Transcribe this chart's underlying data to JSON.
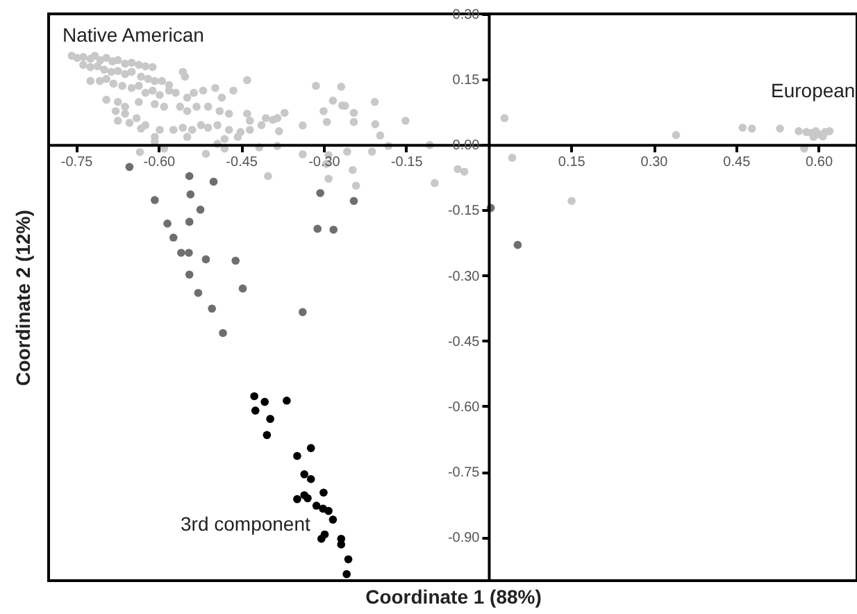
{
  "chart_data": {
    "type": "scatter",
    "xlabel": "Coordinate 1 (88%)",
    "ylabel": "Coordinate 2 (12%)",
    "xlim": [
      -0.8,
      0.67
    ],
    "ylim": [
      -1.0,
      0.3
    ],
    "xticks": [
      -0.75,
      {
        "value": -0.6,
        "label": "-0.60"
      },
      -0.45,
      {
        "value": -0.3,
        "label": "-0.30"
      },
      -0.15,
      0.15,
      {
        "value": 0.3,
        "label": "0.30"
      },
      0.45,
      {
        "value": 0.6,
        "label": "0.60"
      }
    ],
    "yticks": [
      {
        "value": 0.3,
        "label": "0.30"
      },
      0.15,
      {
        "value": 0,
        "label": "0.00"
      },
      -0.15,
      {
        "value": -0.3,
        "label": "-0.30"
      },
      -0.45,
      {
        "value": -0.6,
        "label": "-0.60"
      },
      -0.75,
      {
        "value": -0.9,
        "label": "-0.90"
      }
    ],
    "grid": false,
    "marker": "circle",
    "series": [
      {
        "color": "#c8c8c8",
        "x": [
          -0.758,
          -0.748,
          -0.737,
          -0.724,
          -0.716,
          -0.706,
          -0.695,
          -0.684,
          -0.674,
          -0.661,
          -0.649,
          -0.636,
          -0.624,
          -0.611,
          -0.737,
          -0.724,
          -0.711,
          -0.699,
          -0.686,
          -0.674,
          -0.661,
          -0.649,
          -0.632,
          -0.619,
          -0.607,
          -0.594,
          -0.581,
          -0.556,
          -0.552,
          -0.724,
          -0.707,
          -0.695,
          -0.682,
          -0.666,
          -0.649,
          -0.636,
          -0.624,
          -0.611,
          -0.598,
          -0.581,
          -0.569,
          -0.548,
          -0.536,
          -0.519,
          -0.497,
          -0.485,
          -0.464,
          -0.439,
          -0.695,
          -0.674,
          -0.661,
          -0.636,
          -0.607,
          -0.59,
          -0.561,
          -0.548,
          -0.531,
          -0.51,
          -0.489,
          -0.472,
          -0.439,
          -0.405,
          -0.384,
          -0.678,
          -0.661,
          -0.64,
          -0.624,
          -0.598,
          -0.573,
          -0.556,
          -0.539,
          -0.523,
          -0.51,
          -0.493,
          -0.472,
          -0.451,
          -0.434,
          -0.413,
          -0.674,
          -0.653,
          -0.632,
          -0.607,
          -0.548,
          -0.48,
          -0.456,
          -0.434,
          -0.314,
          -0.268,
          -0.283,
          -0.266,
          -0.261,
          -0.3,
          -0.245,
          -0.207,
          -0.371,
          -0.392,
          -0.381,
          -0.338,
          -0.294,
          -0.245,
          -0.206,
          -0.151,
          -0.197,
          -0.338,
          -0.291,
          -0.257,
          -0.212,
          -0.182,
          -0.107,
          -0.295,
          -0.247,
          -0.291,
          -0.241,
          -0.056,
          -0.044,
          -0.098,
          -0.607,
          -0.634,
          -0.59,
          -0.514,
          -0.493,
          -0.48,
          -0.417,
          -0.401,
          -0.384,
          0.029,
          0.043,
          0.151,
          0.341,
          0.462,
          0.479,
          0.53,
          0.564,
          0.578,
          0.587,
          0.595,
          0.603,
          0.612,
          0.62,
          0.591,
          0.608,
          0.574
        ],
        "values": [
          0.204,
          0.199,
          0.201,
          0.197,
          0.204,
          0.194,
          0.199,
          0.191,
          0.194,
          0.186,
          0.188,
          0.183,
          0.18,
          0.178,
          0.183,
          0.178,
          0.18,
          0.172,
          0.167,
          0.169,
          0.162,
          0.167,
          0.156,
          0.151,
          0.146,
          0.146,
          0.137,
          0.167,
          0.156,
          0.146,
          0.146,
          0.151,
          0.14,
          0.135,
          0.13,
          0.135,
          0.119,
          0.124,
          0.114,
          0.124,
          0.119,
          0.108,
          0.119,
          0.124,
          0.13,
          0.108,
          0.124,
          0.148,
          0.103,
          0.098,
          0.087,
          0.098,
          0.093,
          0.087,
          0.087,
          0.077,
          0.087,
          0.087,
          0.077,
          0.071,
          0.071,
          0.061,
          0.061,
          0.077,
          0.071,
          0.061,
          0.045,
          0.034,
          0.034,
          0.039,
          0.034,
          0.045,
          0.039,
          0.045,
          0.034,
          0.029,
          0.034,
          0.045,
          0.055,
          0.05,
          0.037,
          0.018,
          0.018,
          0.013,
          0.018,
          0.055,
          0.135,
          0.133,
          0.101,
          0.09,
          0.089,
          0.077,
          0.073,
          0.098,
          0.073,
          0.057,
          0.031,
          0.044,
          0.052,
          0.052,
          0.047,
          0.055,
          0.021,
          -0.022,
          -0.024,
          -0.016,
          -0.016,
          -0.003,
          -0.001,
          -0.044,
          -0.058,
          -0.078,
          -0.094,
          -0.056,
          -0.062,
          -0.088,
          0.007,
          -0.017,
          -0.009,
          -0.021,
          0.002,
          -0.009,
          -0.006,
          -0.072,
          -0.003,
          0.061,
          -0.03,
          -0.129,
          0.022,
          0.039,
          0.037,
          0.037,
          0.031,
          0.029,
          0.027,
          0.031,
          0.023,
          0.029,
          0.031,
          0.018,
          0.019,
          -0.009
        ]
      },
      {
        "color": "#6e6e6e",
        "x": [
          -0.653,
          -0.544,
          -0.5,
          -0.607,
          -0.542,
          -0.524,
          -0.584,
          -0.544,
          -0.573,
          -0.559,
          -0.545,
          -0.514,
          -0.46,
          -0.544,
          -0.447,
          -0.528,
          -0.503,
          -0.483,
          -0.338,
          -0.306,
          -0.245,
          -0.311,
          -0.282,
          0.004,
          0.053
        ],
        "values": [
          -0.051,
          -0.072,
          -0.085,
          -0.127,
          -0.114,
          -0.149,
          -0.181,
          -0.177,
          -0.213,
          -0.248,
          -0.248,
          -0.263,
          -0.266,
          -0.298,
          -0.33,
          -0.34,
          -0.376,
          -0.432,
          -0.384,
          -0.111,
          -0.129,
          -0.193,
          -0.195,
          -0.145,
          -0.23
        ]
      },
      {
        "color": "#000000",
        "x": [
          -0.426,
          -0.407,
          -0.424,
          -0.367,
          -0.397,
          -0.403,
          -0.323,
          -0.348,
          -0.335,
          -0.323,
          -0.3,
          -0.348,
          -0.335,
          -0.329,
          -0.313,
          -0.301,
          -0.291,
          -0.283,
          -0.298,
          -0.304,
          -0.268,
          -0.268,
          -0.255,
          -0.258
        ],
        "values": [
          -0.577,
          -0.59,
          -0.61,
          -0.587,
          -0.629,
          -0.666,
          -0.696,
          -0.714,
          -0.756,
          -0.767,
          -0.798,
          -0.813,
          -0.804,
          -0.811,
          -0.828,
          -0.835,
          -0.84,
          -0.86,
          -0.894,
          -0.904,
          -0.904,
          -0.917,
          -0.951,
          -0.985
        ]
      }
    ],
    "annotations": [
      "Native American",
      "European",
      "3rd component"
    ]
  }
}
